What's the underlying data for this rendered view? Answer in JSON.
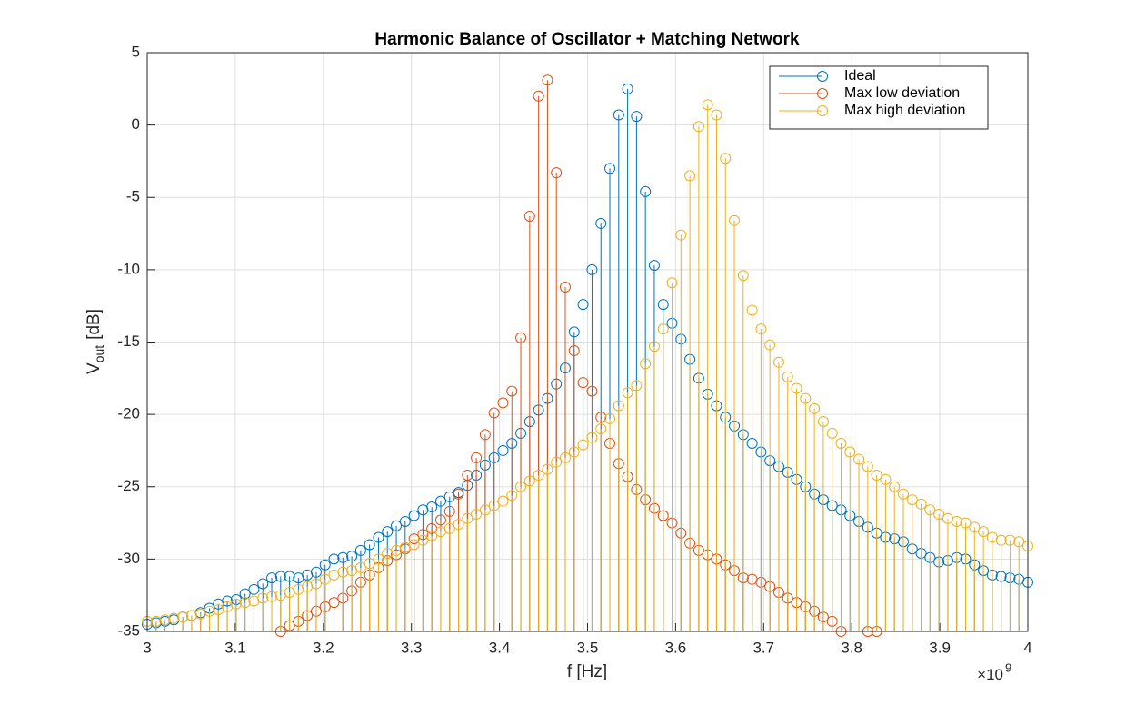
{
  "chart_data": {
    "type": "stem",
    "title": "Harmonic Balance of Oscillator + Matching Network",
    "xlabel": "f [Hz]",
    "x_multiplier": {
      "base": "×10",
      "exponent": "9"
    },
    "ylabel": {
      "text": "V",
      "subscript": "out",
      "unit": "[dB]"
    },
    "x": [
      3,
      3.0101,
      3.0202,
      3.0303,
      3.0404,
      3.0505,
      3.0606,
      3.0707,
      3.0808,
      3.0909,
      3.101,
      3.1111,
      3.1212,
      3.1313,
      3.1414,
      3.1515,
      3.1616,
      3.1717,
      3.1818,
      3.1919,
      3.202,
      3.2121,
      3.2222,
      3.2323,
      3.2424,
      3.2525,
      3.2626,
      3.2727,
      3.2828,
      3.2929,
      3.303,
      3.3131,
      3.3232,
      3.3333,
      3.3434,
      3.3535,
      3.3636,
      3.3737,
      3.3838,
      3.3939,
      3.404,
      3.4141,
      3.4242,
      3.4343,
      3.4444,
      3.4545,
      3.4646,
      3.4747,
      3.4848,
      3.4949,
      3.5051,
      3.5152,
      3.5253,
      3.5354,
      3.5455,
      3.5556,
      3.5657,
      3.5758,
      3.5859,
      3.596,
      3.6061,
      3.6162,
      3.6263,
      3.6364,
      3.6465,
      3.6566,
      3.6667,
      3.6768,
      3.6869,
      3.697,
      3.7071,
      3.7172,
      3.7273,
      3.7374,
      3.7475,
      3.7576,
      3.7677,
      3.7778,
      3.7879,
      3.798,
      3.8081,
      3.8182,
      3.8283,
      3.8384,
      3.8485,
      3.8586,
      3.8687,
      3.8788,
      3.8889,
      3.899,
      3.9091,
      3.9192,
      3.9293,
      3.9394,
      3.9495,
      3.9596,
      3.9697,
      3.9798,
      3.9899,
      4
    ],
    "series": [
      {
        "name": "Ideal",
        "color": "#0072BD",
        "values": [
          -34.5,
          -34.4,
          -34.3,
          -34.2,
          -34.0,
          -33.9,
          -33.7,
          -33.4,
          -33.1,
          -32.9,
          -32.8,
          -32.4,
          -32.1,
          -31.7,
          -31.3,
          -31.2,
          -31.2,
          -31.3,
          -31.1,
          -30.9,
          -30.4,
          -30.0,
          -29.9,
          -29.8,
          -29.4,
          -29.0,
          -28.5,
          -28.1,
          -27.7,
          -27.4,
          -27.0,
          -26.6,
          -26.4,
          -26.0,
          -25.7,
          -25.4,
          -24.9,
          -24.2,
          -23.5,
          -23.0,
          -22.5,
          -22.0,
          -21.3,
          -20.5,
          -19.7,
          -18.9,
          -17.9,
          -16.8,
          -14.3,
          -12.4,
          -10.0,
          -6.8,
          -3.0,
          0.7,
          2.5,
          0.6,
          -4.6,
          -9.7,
          -12.4,
          -13.7,
          -14.8,
          -16.2,
          -17.5,
          -18.6,
          -19.4,
          -20.2,
          -20.8,
          -21.4,
          -22.0,
          -22.6,
          -23.2,
          -23.6,
          -24.0,
          -24.5,
          -25.0,
          -25.5,
          -25.9,
          -26.3,
          -26.6,
          -27.0,
          -27.4,
          -27.8,
          -28.2,
          -28.5,
          -28.6,
          -28.8,
          -29.3,
          -29.6,
          -29.9,
          -30.2,
          -30.1,
          -29.9,
          -30.0,
          -30.4,
          -30.8,
          -31.1,
          -31.2,
          -31.3,
          -31.4,
          -31.6
        ]
      },
      {
        "name": "Max low deviation",
        "color": "#D95319",
        "values": [
          null,
          null,
          null,
          null,
          null,
          null,
          null,
          null,
          null,
          null,
          null,
          null,
          null,
          null,
          null,
          -35.0,
          -34.6,
          -34.3,
          -33.9,
          -33.6,
          -33.3,
          -33.0,
          -32.7,
          -32.2,
          -31.6,
          -31.1,
          -30.6,
          -30.1,
          -29.7,
          -29.3,
          -28.6,
          -28.3,
          -27.9,
          -27.3,
          -26.7,
          -25.5,
          -24.2,
          -23.0,
          -21.4,
          -19.9,
          -19.2,
          -18.4,
          -14.7,
          -6.3,
          2.0,
          3.1,
          -3.3,
          -11.2,
          -15.6,
          -17.8,
          -18.4,
          -20.2,
          -22.0,
          -23.4,
          -24.3,
          -25.2,
          -25.9,
          -26.5,
          -27.0,
          -27.5,
          -28.2,
          -28.9,
          -29.4,
          -29.7,
          -30.0,
          -30.4,
          -30.8,
          -31.3,
          -31.4,
          -31.6,
          -31.9,
          -32.3,
          -32.7,
          -33.0,
          -33.3,
          -33.6,
          -34.0,
          -34.3,
          -35.0,
          null,
          null,
          -35.0,
          -35.0,
          null,
          null,
          null,
          null,
          null,
          null,
          null,
          null,
          null,
          null,
          null,
          null,
          null,
          null,
          null,
          null,
          null
        ]
      },
      {
        "name": "Max high deviation",
        "color": "#EDB120",
        "values": [
          -34.3,
          -34.3,
          -34.2,
          -34.1,
          -34.0,
          -33.9,
          -33.8,
          -33.6,
          -33.5,
          -33.3,
          -33.1,
          -33.0,
          -32.9,
          -32.7,
          -32.6,
          -32.5,
          -32.3,
          -32.1,
          -31.9,
          -31.7,
          -31.4,
          -31.1,
          -30.9,
          -30.8,
          -30.6,
          -30.3,
          -30.0,
          -29.6,
          -29.4,
          -29.2,
          -29.0,
          -28.7,
          -28.4,
          -28.1,
          -27.9,
          -27.6,
          -27.2,
          -26.9,
          -26.6,
          -26.3,
          -26.0,
          -25.6,
          -25.0,
          -24.6,
          -24.2,
          -23.8,
          -23.3,
          -23.0,
          -22.6,
          -22.1,
          -21.6,
          -21.0,
          -20.3,
          -19.4,
          -18.5,
          -18.0,
          -16.5,
          -15.3,
          -14.1,
          -10.9,
          -7.6,
          -3.5,
          -0.1,
          1.4,
          0.7,
          -2.3,
          -6.6,
          -10.4,
          -12.8,
          -14.1,
          -15.2,
          -16.4,
          -17.4,
          -18.2,
          -18.9,
          -19.6,
          -20.5,
          -21.3,
          -22.0,
          -22.6,
          -23.1,
          -23.6,
          -24.2,
          -24.5,
          -25.0,
          -25.5,
          -25.9,
          -26.2,
          -26.6,
          -26.9,
          -27.2,
          -27.4,
          -27.5,
          -27.8,
          -28.1,
          -28.5,
          -28.7,
          -28.7,
          -28.8,
          -29.1
        ]
      }
    ],
    "xlim": [
      3,
      4
    ],
    "xticks": [
      3,
      3.1,
      3.2,
      3.3,
      3.4,
      3.5,
      3.6,
      3.7,
      3.8,
      3.9,
      4
    ],
    "ylim": [
      -35,
      5
    ],
    "yticks": [
      -35,
      -30,
      -25,
      -20,
      -15,
      -10,
      -5,
      0,
      5
    ],
    "grid": true,
    "legend": "northeast"
  }
}
